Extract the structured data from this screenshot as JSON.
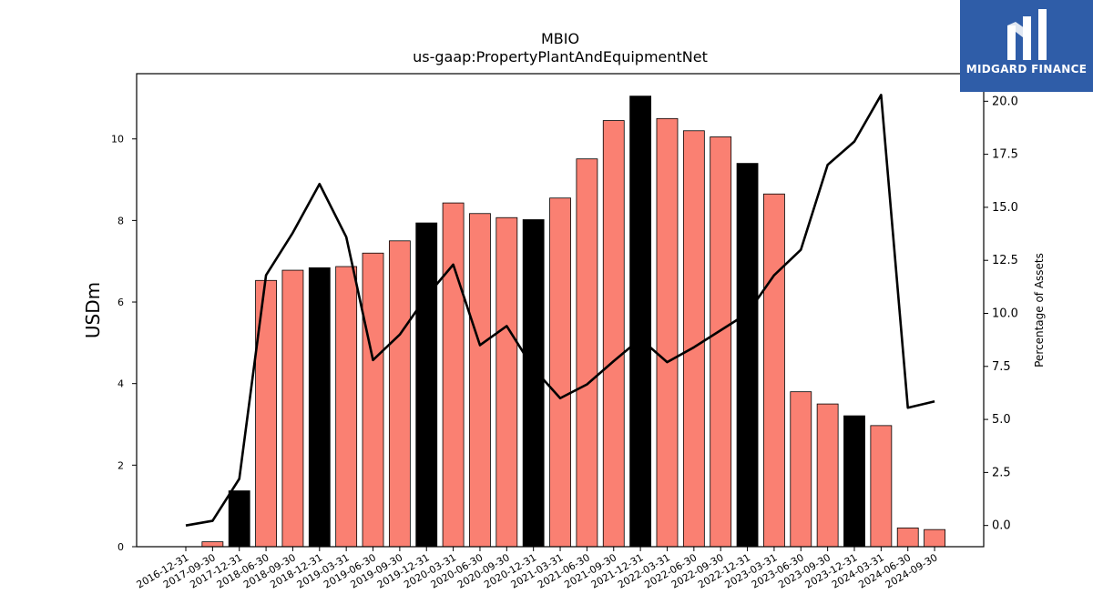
{
  "chart_data": {
    "type": "bar",
    "title": "MBIO",
    "subtitle": "us-gaap:PropertyPlantAndEquipmentNet",
    "ylabel": "USDm",
    "y2label": "Percentage of Assets",
    "ylim": [
      0,
      11.6
    ],
    "y2lim": [
      -1.0,
      21.3
    ],
    "yticks": [
      0,
      2,
      4,
      6,
      8,
      10
    ],
    "y2ticks": [
      "0.0",
      "2.5",
      "5.0",
      "7.5",
      "10.0",
      "12.5",
      "15.0",
      "17.5",
      "20.0"
    ],
    "categories": [
      "2016-12-31",
      "2017-09-30",
      "2017-12-31",
      "2018-06-30",
      "2018-09-30",
      "2018-12-31",
      "2019-03-31",
      "2019-06-30",
      "2019-09-30",
      "2019-12-31",
      "2020-03-31",
      "2020-06-30",
      "2020-09-30",
      "2020-12-31",
      "2021-03-31",
      "2021-06-30",
      "2021-09-30",
      "2021-12-31",
      "2022-03-31",
      "2022-06-30",
      "2022-09-30",
      "2022-12-31",
      "2023-03-31",
      "2023-06-30",
      "2023-09-30",
      "2023-12-31",
      "2024-03-31",
      "2024-06-30",
      "2024-09-30"
    ],
    "series": [
      {
        "type": "bar",
        "values": [
          0.0,
          0.12,
          1.37,
          6.53,
          6.78,
          6.84,
          6.87,
          7.2,
          7.5,
          7.94,
          8.43,
          8.17,
          8.07,
          8.02,
          8.55,
          9.51,
          10.45,
          11.05,
          10.5,
          10.2,
          10.05,
          9.4,
          8.65,
          3.8,
          3.5,
          3.21,
          2.97,
          0.46,
          0.42
        ],
        "colors": [
          "#fa8072",
          "#fa8072",
          "#000000",
          "#fa8072",
          "#fa8072",
          "#000000",
          "#fa8072",
          "#fa8072",
          "#fa8072",
          "#000000",
          "#fa8072",
          "#fa8072",
          "#fa8072",
          "#000000",
          "#fa8072",
          "#fa8072",
          "#fa8072",
          "#000000",
          "#fa8072",
          "#fa8072",
          "#fa8072",
          "#000000",
          "#fa8072",
          "#fa8072",
          "#fa8072",
          "#000000",
          "#fa8072",
          "#fa8072",
          "#fa8072"
        ]
      },
      {
        "type": "line",
        "axis": "right",
        "color": "#000000",
        "values": [
          0.0,
          0.22,
          2.2,
          11.8,
          13.8,
          16.1,
          13.6,
          7.8,
          9.0,
          10.8,
          12.3,
          8.5,
          9.4,
          7.4,
          6.0,
          6.65,
          7.75,
          8.8,
          7.7,
          8.4,
          9.2,
          10.0,
          11.8,
          13.0,
          17.0,
          18.1,
          20.3,
          5.55,
          5.85
        ]
      }
    ],
    "grid": false,
    "legend": "none"
  },
  "logo": {
    "text": "MIDGARD FINANCE",
    "background": "#2f5da8"
  }
}
